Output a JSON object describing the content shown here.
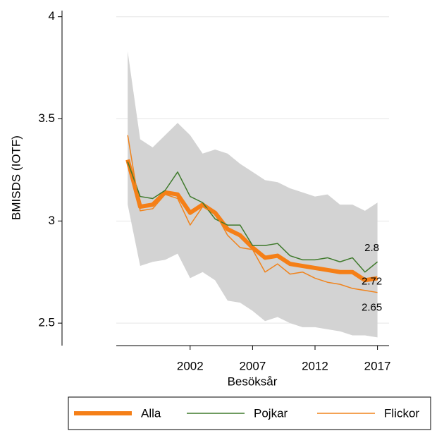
{
  "chart_data": {
    "type": "line",
    "x": [
      1997,
      1998,
      1999,
      2000,
      2001,
      2002,
      2003,
      2004,
      2005,
      2006,
      2007,
      2008,
      2009,
      2010,
      2011,
      2012,
      2013,
      2014,
      2015,
      2016,
      2017
    ],
    "xlim": [
      1996.2,
      2017.7
    ],
    "xticks": [
      2002,
      2007,
      2012,
      2017
    ],
    "ylim": [
      2.39,
      4.03
    ],
    "yticks": [
      2.5,
      3,
      3.5,
      4
    ],
    "x_label": "Besöksår",
    "y_label": "BMISDS (IOTF)",
    "grid": true,
    "legend": "bottom",
    "band": {
      "color": "#d3d3d3",
      "upper": [
        3.83,
        3.4,
        3.36,
        3.42,
        3.48,
        3.42,
        3.33,
        3.35,
        3.33,
        3.28,
        3.24,
        3.2,
        3.19,
        3.16,
        3.14,
        3.12,
        3.13,
        3.08,
        3.08,
        3.05,
        3.09
      ],
      "lower": [
        3.08,
        2.78,
        2.8,
        2.81,
        2.84,
        2.72,
        2.75,
        2.71,
        2.61,
        2.6,
        2.56,
        2.51,
        2.53,
        2.5,
        2.48,
        2.48,
        2.47,
        2.46,
        2.44,
        2.44,
        2.43
      ]
    },
    "series": [
      {
        "name": "Alla",
        "color": "#f57f17",
        "width": 6,
        "values": [
          3.3,
          3.07,
          3.08,
          3.14,
          3.13,
          3.04,
          3.08,
          3.04,
          2.96,
          2.93,
          2.87,
          2.82,
          2.83,
          2.79,
          2.78,
          2.77,
          2.76,
          2.75,
          2.75,
          2.71,
          2.72
        ],
        "value_labels": [
          null,
          null,
          null,
          null,
          null,
          null,
          null,
          null,
          null,
          null,
          null,
          null,
          null,
          null,
          null,
          null,
          null,
          null,
          null,
          null,
          "2.72"
        ]
      },
      {
        "name": "Pojkar",
        "color": "#3f7a2c",
        "width": 1.5,
        "values": [
          3.29,
          3.12,
          3.11,
          3.15,
          3.24,
          3.12,
          3.09,
          3.01,
          2.98,
          2.98,
          2.88,
          2.88,
          2.89,
          2.83,
          2.81,
          2.81,
          2.82,
          2.8,
          2.82,
          2.75,
          2.8
        ],
        "value_labels": [
          null,
          null,
          null,
          null,
          null,
          null,
          null,
          null,
          null,
          null,
          null,
          null,
          null,
          null,
          null,
          null,
          null,
          null,
          null,
          null,
          "2.8"
        ]
      },
      {
        "name": "Flickor",
        "color": "#f0831c",
        "width": 1.5,
        "values": [
          3.42,
          3.05,
          3.06,
          3.13,
          3.11,
          2.98,
          3.07,
          3.04,
          2.93,
          2.87,
          2.86,
          2.75,
          2.79,
          2.74,
          2.75,
          2.72,
          2.7,
          2.69,
          2.67,
          2.66,
          2.65
        ],
        "value_labels": [
          null,
          null,
          null,
          null,
          null,
          null,
          null,
          null,
          null,
          null,
          null,
          null,
          null,
          null,
          null,
          null,
          null,
          null,
          null,
          null,
          "2.65"
        ]
      }
    ]
  }
}
